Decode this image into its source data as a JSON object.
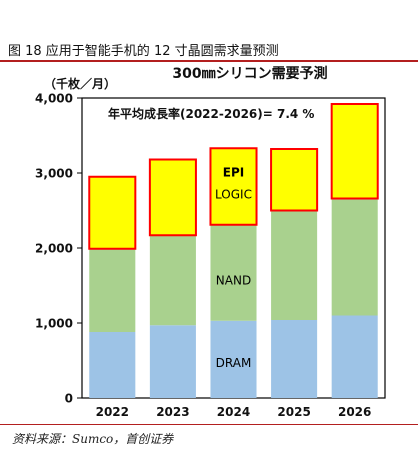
{
  "figure_title": "图 18 应用于智能手机的 12 寸晶圆需求量预测",
  "source": "资料来源：Sumco，首创证券",
  "chart_data": {
    "type": "bar",
    "stacked": true,
    "title": "300㎜シリコン需要予測",
    "ylabel": "（千枚／月）",
    "xlabel": "",
    "annotation": "年平均成長率(2022-2026)= 7.4 %",
    "categories": [
      "2022",
      "2023",
      "2024",
      "2025",
      "2026"
    ],
    "ylim": [
      0,
      4000
    ],
    "yticks": [
      0,
      1000,
      2000,
      3000,
      4000
    ],
    "ytick_labels": [
      "0",
      "1,000",
      "2,000",
      "3,000",
      "4,000"
    ],
    "series": [
      {
        "name": "DRAM",
        "color": "#9dc3e6",
        "values": [
          880,
          970,
          1030,
          1040,
          1100
        ]
      },
      {
        "name": "NAND",
        "color": "#a9d18e",
        "values": [
          1110,
          1200,
          1280,
          1460,
          1560
        ]
      },
      {
        "name": "EPI LOGIC",
        "color": "#ffff00",
        "border": "#ff0000",
        "values": [
          960,
          1010,
          1020,
          820,
          1260
        ]
      }
    ],
    "series_labels": {
      "dram": "DRAM",
      "nand": "NAND",
      "epi": "EPI",
      "logic": "LOGIC"
    },
    "grid": false,
    "legend": "none"
  }
}
